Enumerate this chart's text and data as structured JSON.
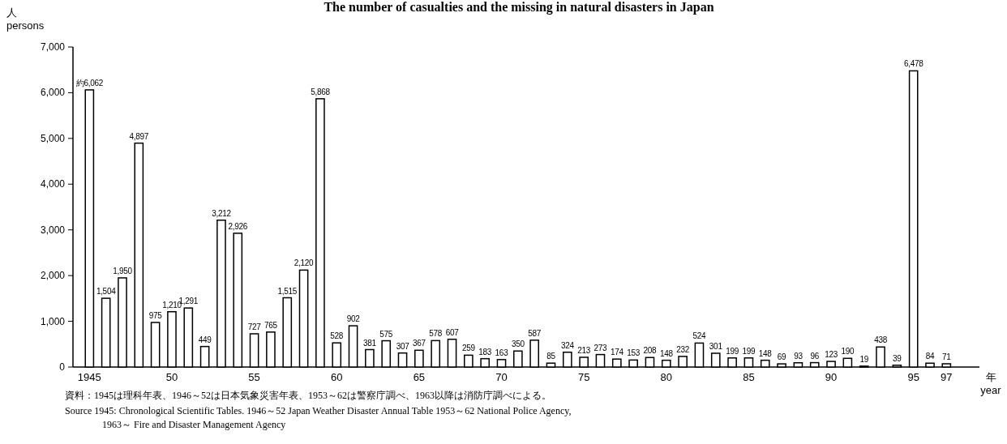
{
  "chart_data": {
    "type": "bar",
    "title": "The number of casualties and the missing in natural disasters in Japan",
    "xlabel": "年\nyear",
    "ylabel": "人\npersons",
    "x": [
      1945,
      1946,
      1947,
      1948,
      1949,
      1950,
      1951,
      1952,
      1953,
      1954,
      1955,
      1956,
      1957,
      1958,
      1959,
      1960,
      1961,
      1962,
      1963,
      1964,
      1965,
      1966,
      1967,
      1968,
      1969,
      1970,
      1971,
      1972,
      1973,
      1974,
      1975,
      1976,
      1977,
      1978,
      1979,
      1980,
      1981,
      1982,
      1983,
      1984,
      1985,
      1986,
      1987,
      1988,
      1989,
      1990,
      1991,
      1992,
      1993,
      1994,
      1995,
      1996,
      1997
    ],
    "values": [
      6062,
      1504,
      1950,
      4897,
      975,
      1210,
      1291,
      449,
      3212,
      2926,
      727,
      765,
      1515,
      2120,
      5868,
      528,
      902,
      381,
      575,
      307,
      367,
      578,
      607,
      259,
      183,
      163,
      350,
      587,
      85,
      324,
      213,
      273,
      174,
      153,
      208,
      148,
      232,
      524,
      301,
      199,
      199,
      148,
      69,
      93,
      96,
      123,
      190,
      19,
      438,
      39,
      6478,
      84,
      71
    ],
    "value_labels": [
      "約6,062",
      "1,504",
      "1,950",
      "4,897",
      "975",
      "1,210",
      "1,291",
      "449",
      "3,212",
      "2,926",
      "727",
      "765",
      "1,515",
      "2,120",
      "5,868",
      "528",
      "902",
      "381",
      "575",
      "307",
      "367",
      "578",
      "607",
      "259",
      "183",
      "163",
      "350",
      "587",
      "85",
      "324",
      "213",
      "273",
      "174",
      "153",
      "208",
      "148",
      "232",
      "524",
      "301",
      "199",
      "199",
      "148",
      "69",
      "93",
      "96",
      "123",
      "190",
      "19",
      "438",
      "39",
      "6,478",
      "84",
      "71"
    ],
    "color": "#ffffff",
    "xlim": [
      1944,
      1999
    ],
    "xticks": [
      {
        "value": 1945,
        "label": "1945"
      },
      {
        "value": 1950,
        "label": "50"
      },
      {
        "value": 1955,
        "label": "55"
      },
      {
        "value": 1960,
        "label": "60"
      },
      {
        "value": 1965,
        "label": "65"
      },
      {
        "value": 1970,
        "label": "70"
      },
      {
        "value": 1975,
        "label": "75"
      },
      {
        "value": 1980,
        "label": "80"
      },
      {
        "value": 1985,
        "label": "85"
      },
      {
        "value": 1990,
        "label": "90"
      },
      {
        "value": 1995,
        "label": "95"
      },
      {
        "value": 1997,
        "label": "97"
      }
    ],
    "ylim": [
      0,
      7000
    ],
    "yticks": [
      0,
      {
        "value": 1000,
        "label": "1,000"
      },
      {
        "value": 2000,
        "label": "2,000"
      },
      {
        "value": 3000,
        "label": "3,000"
      },
      {
        "value": 4000,
        "label": "4,000"
      },
      {
        "value": 5000,
        "label": "5,000"
      },
      {
        "value": 6000,
        "label": "6,000"
      },
      {
        "value": 7000,
        "label": "7,000"
      }
    ],
    "annotations": [
      "資料：1945は理科年表、1946～52は日本気象災害年表、1953～62は警察庁調べ、1963以降は消防庁調べによる。",
      "Source  1945: Chronological Scientific Tables.  1946～52  Japan Weather Disaster Annual Table  1953～62  National Police Agency,",
      "1963～  Fire and Disaster Management Agency"
    ]
  }
}
